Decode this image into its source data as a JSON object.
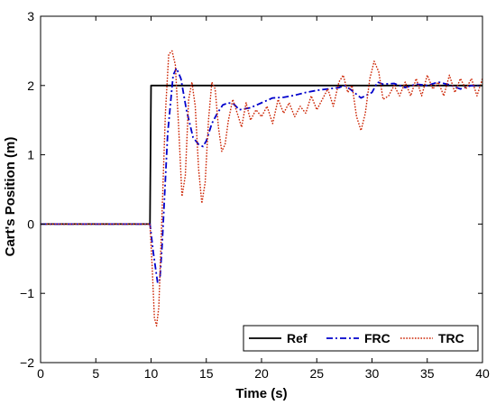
{
  "chart_data": {
    "type": "line",
    "title": "",
    "xlabel": "Time (s)",
    "ylabel": "Cart's Position (m)",
    "xlim": [
      0,
      40
    ],
    "ylim": [
      -2,
      3
    ],
    "xticks": [
      0,
      5,
      10,
      15,
      20,
      25,
      30,
      35,
      40
    ],
    "yticks": [
      -2,
      -1,
      0,
      1,
      2,
      3
    ],
    "xtick_labels": [
      "0",
      "5",
      "10",
      "15",
      "20",
      "25",
      "30",
      "35",
      "40"
    ],
    "ytick_labels": [
      "−2",
      "−1",
      "0",
      "1",
      "2",
      "3"
    ],
    "grid": false,
    "legend": {
      "position": "bottom-right",
      "orientation": "horizontal"
    },
    "series": [
      {
        "name": "Ref",
        "color": "#000000",
        "dash": "solid",
        "x": [
          0,
          9.9,
          10.0,
          40
        ],
        "y": [
          0,
          0,
          2,
          2
        ]
      },
      {
        "name": "FRC",
        "color": "#0000cc",
        "dash": "dashdot",
        "x": [
          0,
          9.9,
          10.2,
          10.6,
          10.8,
          11.0,
          11.5,
          12.0,
          12.3,
          12.7,
          13.2,
          13.8,
          14.3,
          14.7,
          15.0,
          15.5,
          16.0,
          16.5,
          17.0,
          17.5,
          18.0,
          19.0,
          20.0,
          21.0,
          22.0,
          23.0,
          24.0,
          25.0,
          26.0,
          27.0,
          27.5,
          28.0,
          29.0,
          30.0,
          30.5,
          31.0,
          32.0,
          33.0,
          34.0,
          35.0,
          36.0,
          37.0,
          38.0,
          39.0,
          40.0
        ],
        "y": [
          0,
          0,
          -0.4,
          -0.85,
          -0.8,
          -0.3,
          1.3,
          2.15,
          2.25,
          2.1,
          1.65,
          1.25,
          1.15,
          1.12,
          1.2,
          1.45,
          1.6,
          1.72,
          1.75,
          1.73,
          1.65,
          1.68,
          1.75,
          1.82,
          1.83,
          1.86,
          1.9,
          1.93,
          1.95,
          1.97,
          2.0,
          1.95,
          1.82,
          1.9,
          2.05,
          2.02,
          2.03,
          1.97,
          2.02,
          2.0,
          2.05,
          2.01,
          1.95,
          2.0,
          2.0
        ]
      },
      {
        "name": "TRC",
        "color": "#cc2200",
        "dash": "dotted",
        "x": [
          0,
          9.9,
          10.1,
          10.3,
          10.5,
          10.7,
          11.0,
          11.3,
          11.6,
          11.9,
          12.2,
          12.5,
          12.8,
          13.1,
          13.4,
          13.7,
          14.0,
          14.3,
          14.6,
          14.9,
          15.2,
          15.5,
          15.8,
          16.1,
          16.4,
          16.7,
          17.0,
          17.4,
          17.8,
          18.2,
          18.6,
          19.0,
          19.5,
          20.0,
          20.5,
          21.0,
          21.5,
          22.0,
          22.5,
          23.0,
          23.5,
          24.0,
          24.5,
          25.0,
          25.5,
          26.0,
          26.5,
          27.0,
          27.4,
          27.8,
          28.2,
          28.6,
          29.0,
          29.4,
          29.8,
          30.2,
          30.6,
          31.0,
          31.5,
          32.0,
          32.5,
          33.0,
          33.5,
          34.0,
          34.5,
          35.0,
          35.5,
          36.0,
          36.5,
          37.0,
          37.5,
          38.0,
          38.5,
          39.0,
          39.5,
          40.0
        ],
        "y": [
          0,
          0,
          -0.6,
          -1.35,
          -1.47,
          -1.2,
          0.2,
          1.6,
          2.45,
          2.5,
          2.3,
          1.4,
          0.4,
          0.7,
          1.8,
          2.05,
          1.7,
          0.8,
          0.3,
          0.6,
          1.5,
          2.05,
          1.95,
          1.4,
          1.05,
          1.15,
          1.5,
          1.8,
          1.6,
          1.4,
          1.75,
          1.5,
          1.65,
          1.55,
          1.7,
          1.45,
          1.8,
          1.6,
          1.75,
          1.55,
          1.7,
          1.6,
          1.85,
          1.65,
          1.8,
          1.95,
          1.7,
          2.05,
          2.15,
          1.9,
          2.0,
          1.55,
          1.35,
          1.6,
          2.1,
          2.35,
          2.2,
          1.8,
          1.85,
          2.0,
          1.85,
          2.05,
          1.85,
          2.1,
          1.85,
          2.15,
          1.95,
          2.05,
          1.85,
          2.15,
          1.9,
          2.1,
          1.95,
          2.1,
          1.85,
          2.1
        ]
      }
    ]
  }
}
